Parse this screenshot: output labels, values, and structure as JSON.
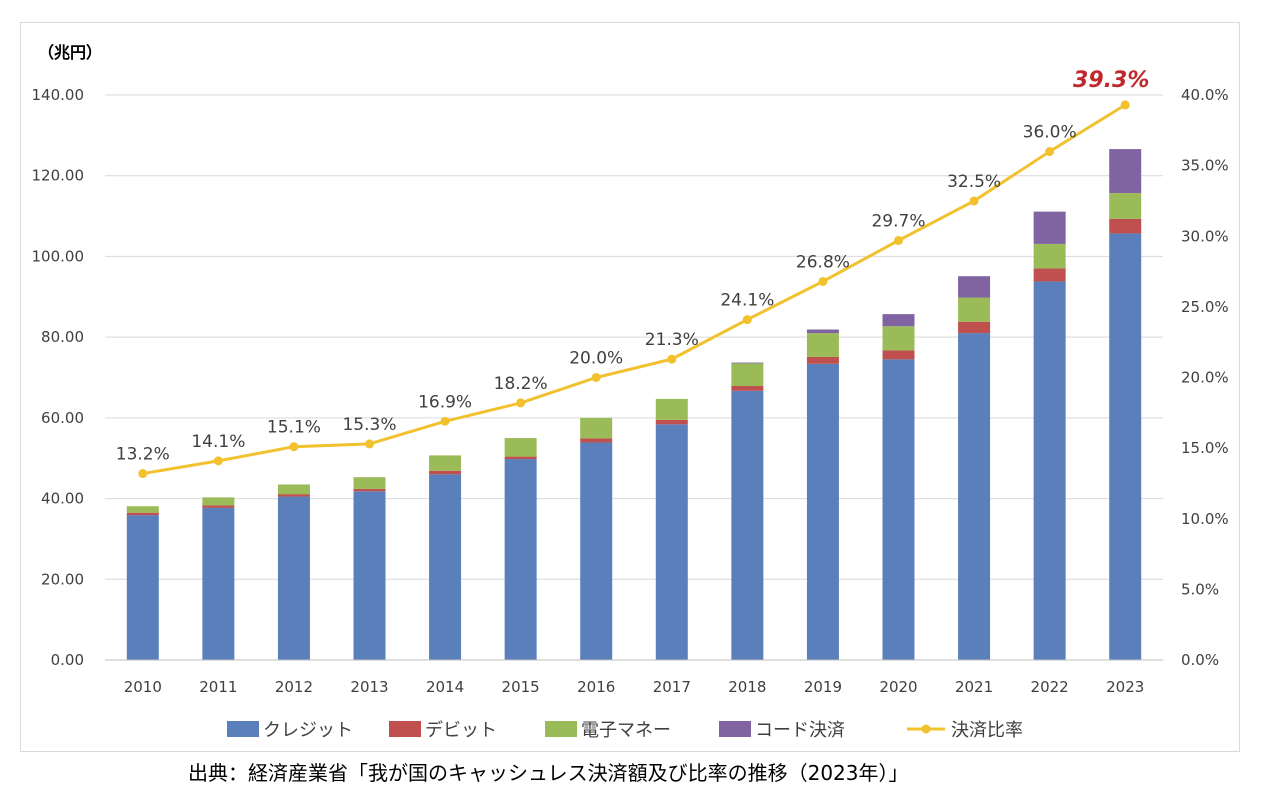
{
  "chart_data": {
    "type": "bar",
    "stacked": true,
    "unit_label": "（兆円）",
    "categories": [
      "2010",
      "2011",
      "2012",
      "2013",
      "2014",
      "2015",
      "2016",
      "2017",
      "2018",
      "2019",
      "2020",
      "2021",
      "2022",
      "2023"
    ],
    "series": [
      {
        "name": "クレジット",
        "color": "#5b7fba",
        "values": [
          35.9,
          37.7,
          40.5,
          41.8,
          46.0,
          49.8,
          53.9,
          58.4,
          66.7,
          73.4,
          74.5,
          81.0,
          93.8,
          105.7
        ]
      },
      {
        "name": "デビット",
        "color": "#c0504d",
        "values": [
          0.6,
          0.6,
          0.6,
          0.6,
          0.9,
          0.6,
          1.0,
          1.1,
          1.2,
          1.7,
          2.2,
          2.8,
          3.2,
          3.6
        ]
      },
      {
        "name": "電子マネー",
        "color": "#9bbb59",
        "values": [
          1.6,
          2.0,
          2.4,
          2.9,
          3.8,
          4.6,
          5.1,
          5.2,
          5.6,
          5.9,
          6.0,
          6.0,
          6.1,
          6.4
        ]
      },
      {
        "name": "コード決済",
        "color": "#8064a2",
        "values": [
          0,
          0,
          0,
          0,
          0,
          0,
          0,
          0,
          0.2,
          0.9,
          3.0,
          5.3,
          8.0,
          10.9
        ]
      }
    ],
    "line_series": {
      "name": "決済比率",
      "color": "#f2c12e",
      "values": [
        13.2,
        14.1,
        15.1,
        15.3,
        16.9,
        18.2,
        20.0,
        21.3,
        24.1,
        26.8,
        29.7,
        32.5,
        36.0,
        39.3
      ],
      "labels": [
        "13.2%",
        "14.1%",
        "15.1%",
        "15.3%",
        "16.9%",
        "18.2%",
        "20.0%",
        "21.3%",
        "24.1%",
        "26.8%",
        "29.7%",
        "32.5%",
        "36.0%",
        "39.3%"
      ],
      "highlight_index": 13,
      "highlight_color": "#c0282d"
    },
    "y_left": {
      "min": 0,
      "max": 140,
      "step": 20,
      "ticks": [
        "0.00",
        "20.00",
        "40.00",
        "60.00",
        "80.00",
        "100.00",
        "120.00",
        "140.00"
      ]
    },
    "y_right": {
      "min": 0,
      "max": 40,
      "step": 5,
      "ticks": [
        "0.0%",
        "5.0%",
        "10.0%",
        "15.0%",
        "20.0%",
        "25.0%",
        "30.0%",
        "35.0%",
        "40.0%"
      ]
    },
    "grid": true,
    "legend_position": "bottom"
  },
  "caption": "出典：経済産業省「我が国のキャッシュレス決済額及び比率の推移（2023年）」"
}
